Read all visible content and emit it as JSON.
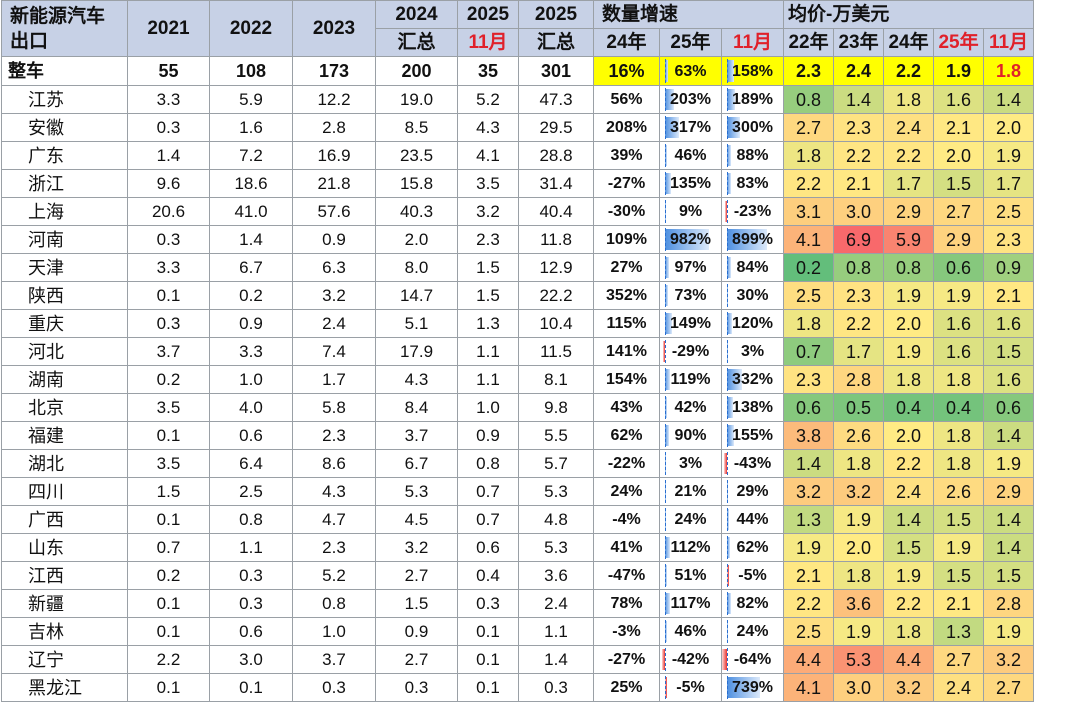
{
  "header": {
    "corner": "新能源汽车\n出口",
    "years": [
      "2021",
      "2022",
      "2023"
    ],
    "y2024": "2024",
    "y2024_sub": "汇总",
    "y2025m": "2025",
    "y2025m_sub": "11月",
    "y2025": "2025",
    "y2025_sub": "汇总",
    "growth_group": "数量增速",
    "growth_cols": [
      "24年",
      "25年",
      "11月"
    ],
    "price_group": "均价-万美元",
    "price_cols": [
      "22年",
      "23年",
      "24年",
      "25年",
      "11月"
    ]
  },
  "colors": {
    "header_bg": "#c7d1e6",
    "highlight": "#ffff00",
    "red_text": "#e0202a",
    "bar_positive": "#4d8fe0",
    "bar_negative": "#e8332e"
  },
  "rows": [
    {
      "name": "整车",
      "v": [
        "55",
        "108",
        "173",
        "200",
        "35",
        "301"
      ],
      "g": [
        "16%",
        "63%",
        "158%"
      ],
      "gv": [
        16,
        63,
        158
      ],
      "p": [
        "2.3",
        "2.4",
        "2.2",
        "1.9",
        "1.8"
      ],
      "pv": [
        2.3,
        2.4,
        2.2,
        1.9,
        1.8
      ]
    },
    {
      "name": "江苏",
      "v": [
        "3.3",
        "5.9",
        "12.2",
        "19.0",
        "5.2",
        "47.3"
      ],
      "g": [
        "56%",
        "203%",
        "189%"
      ],
      "gv": [
        56,
        203,
        189
      ],
      "p": [
        "0.8",
        "1.4",
        "1.8",
        "1.6",
        "1.4"
      ],
      "pv": [
        0.8,
        1.4,
        1.8,
        1.6,
        1.4
      ]
    },
    {
      "name": "安徽",
      "v": [
        "0.3",
        "1.6",
        "2.8",
        "8.5",
        "4.3",
        "29.5"
      ],
      "g": [
        "208%",
        "317%",
        "300%"
      ],
      "gv": [
        208,
        317,
        300
      ],
      "p": [
        "2.7",
        "2.3",
        "2.4",
        "2.1",
        "2.0"
      ],
      "pv": [
        2.7,
        2.3,
        2.4,
        2.1,
        2.0
      ]
    },
    {
      "name": "广东",
      "v": [
        "1.4",
        "7.2",
        "16.9",
        "23.5",
        "4.1",
        "28.8"
      ],
      "g": [
        "39%",
        "46%",
        "88%"
      ],
      "gv": [
        39,
        46,
        88
      ],
      "p": [
        "1.8",
        "2.2",
        "2.2",
        "2.0",
        "1.9"
      ],
      "pv": [
        1.8,
        2.2,
        2.2,
        2.0,
        1.9
      ]
    },
    {
      "name": "浙江",
      "v": [
        "9.6",
        "18.6",
        "21.8",
        "15.8",
        "3.5",
        "31.4"
      ],
      "g": [
        "-27%",
        "135%",
        "83%"
      ],
      "gv": [
        -27,
        135,
        83
      ],
      "p": [
        "2.2",
        "2.1",
        "1.7",
        "1.5",
        "1.7"
      ],
      "pv": [
        2.2,
        2.1,
        1.7,
        1.5,
        1.7
      ]
    },
    {
      "name": "上海",
      "v": [
        "20.6",
        "41.0",
        "57.6",
        "40.3",
        "3.2",
        "40.4"
      ],
      "g": [
        "-30%",
        "9%",
        "-23%"
      ],
      "gv": [
        -30,
        9,
        -23
      ],
      "p": [
        "3.1",
        "3.0",
        "2.9",
        "2.7",
        "2.5"
      ],
      "pv": [
        3.1,
        3.0,
        2.9,
        2.7,
        2.5
      ]
    },
    {
      "name": "河南",
      "v": [
        "0.3",
        "1.4",
        "0.9",
        "2.0",
        "2.3",
        "11.8"
      ],
      "g": [
        "109%",
        "982%",
        "899%"
      ],
      "gv": [
        109,
        982,
        899
      ],
      "p": [
        "4.1",
        "6.9",
        "5.9",
        "2.9",
        "2.3"
      ],
      "pv": [
        4.1,
        6.9,
        5.9,
        2.9,
        2.3
      ]
    },
    {
      "name": "天津",
      "v": [
        "3.3",
        "6.7",
        "6.3",
        "8.0",
        "1.5",
        "12.9"
      ],
      "g": [
        "27%",
        "97%",
        "84%"
      ],
      "gv": [
        27,
        97,
        84
      ],
      "p": [
        "0.2",
        "0.8",
        "0.8",
        "0.6",
        "0.9"
      ],
      "pv": [
        0.2,
        0.8,
        0.8,
        0.6,
        0.9
      ]
    },
    {
      "name": "陕西",
      "v": [
        "0.1",
        "0.2",
        "3.2",
        "14.7",
        "1.5",
        "22.2"
      ],
      "g": [
        "352%",
        "73%",
        "30%"
      ],
      "gv": [
        352,
        73,
        30
      ],
      "p": [
        "2.5",
        "2.3",
        "1.9",
        "1.9",
        "2.1"
      ],
      "pv": [
        2.5,
        2.3,
        1.9,
        1.9,
        2.1
      ]
    },
    {
      "name": "重庆",
      "v": [
        "0.3",
        "0.9",
        "2.4",
        "5.1",
        "1.3",
        "10.4"
      ],
      "g": [
        "115%",
        "149%",
        "120%"
      ],
      "gv": [
        115,
        149,
        120
      ],
      "p": [
        "1.8",
        "2.2",
        "2.0",
        "1.6",
        "1.6"
      ],
      "pv": [
        1.8,
        2.2,
        2.0,
        1.6,
        1.6
      ]
    },
    {
      "name": "河北",
      "v": [
        "3.7",
        "3.3",
        "7.4",
        "17.9",
        "1.1",
        "11.5"
      ],
      "g": [
        "141%",
        "-29%",
        "3%"
      ],
      "gv": [
        141,
        -29,
        3
      ],
      "p": [
        "0.7",
        "1.7",
        "1.9",
        "1.6",
        "1.5"
      ],
      "pv": [
        0.7,
        1.7,
        1.9,
        1.6,
        1.5
      ]
    },
    {
      "name": "湖南",
      "v": [
        "0.2",
        "1.0",
        "1.7",
        "4.3",
        "1.1",
        "8.1"
      ],
      "g": [
        "154%",
        "119%",
        "332%"
      ],
      "gv": [
        154,
        119,
        332
      ],
      "p": [
        "2.3",
        "2.8",
        "1.8",
        "1.8",
        "1.6"
      ],
      "pv": [
        2.3,
        2.8,
        1.8,
        1.8,
        1.6
      ]
    },
    {
      "name": "北京",
      "v": [
        "3.5",
        "4.0",
        "5.8",
        "8.4",
        "1.0",
        "9.8"
      ],
      "g": [
        "43%",
        "42%",
        "138%"
      ],
      "gv": [
        43,
        42,
        138
      ],
      "p": [
        "0.6",
        "0.5",
        "0.4",
        "0.4",
        "0.6"
      ],
      "pv": [
        0.6,
        0.5,
        0.4,
        0.4,
        0.6
      ]
    },
    {
      "name": "福建",
      "v": [
        "0.1",
        "0.6",
        "2.3",
        "3.7",
        "0.9",
        "5.5"
      ],
      "g": [
        "62%",
        "90%",
        "155%"
      ],
      "gv": [
        62,
        90,
        155
      ],
      "p": [
        "3.8",
        "2.6",
        "2.0",
        "1.8",
        "1.4"
      ],
      "pv": [
        3.8,
        2.6,
        2.0,
        1.8,
        1.4
      ]
    },
    {
      "name": "湖北",
      "v": [
        "3.5",
        "6.4",
        "8.6",
        "6.7",
        "0.8",
        "5.7"
      ],
      "g": [
        "-22%",
        "3%",
        "-43%"
      ],
      "gv": [
        -22,
        3,
        -43
      ],
      "p": [
        "1.4",
        "1.8",
        "2.2",
        "1.8",
        "1.9"
      ],
      "pv": [
        1.4,
        1.8,
        2.2,
        1.8,
        1.9
      ]
    },
    {
      "name": "四川",
      "v": [
        "1.5",
        "2.5",
        "4.3",
        "5.3",
        "0.7",
        "5.3"
      ],
      "g": [
        "24%",
        "21%",
        "29%"
      ],
      "gv": [
        24,
        21,
        29
      ],
      "p": [
        "3.2",
        "3.2",
        "2.4",
        "2.6",
        "2.9"
      ],
      "pv": [
        3.2,
        3.2,
        2.4,
        2.6,
        2.9
      ]
    },
    {
      "name": "广西",
      "v": [
        "0.1",
        "0.8",
        "4.7",
        "4.5",
        "0.7",
        "4.8"
      ],
      "g": [
        "-4%",
        "24%",
        "44%"
      ],
      "gv": [
        -4,
        24,
        44
      ],
      "p": [
        "1.3",
        "1.9",
        "1.4",
        "1.5",
        "1.4"
      ],
      "pv": [
        1.3,
        1.9,
        1.4,
        1.5,
        1.4
      ]
    },
    {
      "name": "山东",
      "v": [
        "0.7",
        "1.1",
        "2.3",
        "3.2",
        "0.6",
        "5.3"
      ],
      "g": [
        "41%",
        "112%",
        "62%"
      ],
      "gv": [
        41,
        112,
        62
      ],
      "p": [
        "1.9",
        "2.0",
        "1.5",
        "1.9",
        "1.4"
      ],
      "pv": [
        1.9,
        2.0,
        1.5,
        1.9,
        1.4
      ]
    },
    {
      "name": "江西",
      "v": [
        "0.2",
        "0.3",
        "5.2",
        "2.7",
        "0.4",
        "3.6"
      ],
      "g": [
        "-47%",
        "51%",
        "-5%"
      ],
      "gv": [
        -47,
        51,
        -5
      ],
      "p": [
        "2.1",
        "1.8",
        "1.9",
        "1.5",
        "1.5"
      ],
      "pv": [
        2.1,
        1.8,
        1.9,
        1.5,
        1.5
      ]
    },
    {
      "name": "新疆",
      "v": [
        "0.1",
        "0.3",
        "0.8",
        "1.5",
        "0.3",
        "2.4"
      ],
      "g": [
        "78%",
        "117%",
        "82%"
      ],
      "gv": [
        78,
        117,
        82
      ],
      "p": [
        "2.2",
        "3.6",
        "2.2",
        "2.1",
        "2.8"
      ],
      "pv": [
        2.2,
        3.6,
        2.2,
        2.1,
        2.8
      ]
    },
    {
      "name": "吉林",
      "v": [
        "0.1",
        "0.6",
        "1.0",
        "0.9",
        "0.1",
        "1.1"
      ],
      "g": [
        "-3%",
        "46%",
        "24%"
      ],
      "gv": [
        -3,
        46,
        24
      ],
      "p": [
        "2.5",
        "1.9",
        "1.8",
        "1.3",
        "1.9"
      ],
      "pv": [
        2.5,
        1.9,
        1.8,
        1.3,
        1.9
      ]
    },
    {
      "name": "辽宁",
      "v": [
        "2.2",
        "3.0",
        "3.7",
        "2.7",
        "0.1",
        "1.4"
      ],
      "g": [
        "-27%",
        "-42%",
        "-64%"
      ],
      "gv": [
        -27,
        -42,
        -64
      ],
      "p": [
        "4.4",
        "5.3",
        "4.4",
        "2.7",
        "3.2"
      ],
      "pv": [
        4.4,
        5.3,
        4.4,
        2.7,
        3.2
      ]
    },
    {
      "name": "黑龙江",
      "v": [
        "0.1",
        "0.1",
        "0.3",
        "0.3",
        "0.1",
        "0.3"
      ],
      "g": [
        "25%",
        "-5%",
        "739%"
      ],
      "gv": [
        25,
        -5,
        739
      ],
      "p": [
        "4.1",
        "3.0",
        "3.2",
        "2.4",
        "2.7"
      ],
      "pv": [
        4.1,
        3.0,
        3.2,
        2.4,
        2.7
      ]
    }
  ]
}
